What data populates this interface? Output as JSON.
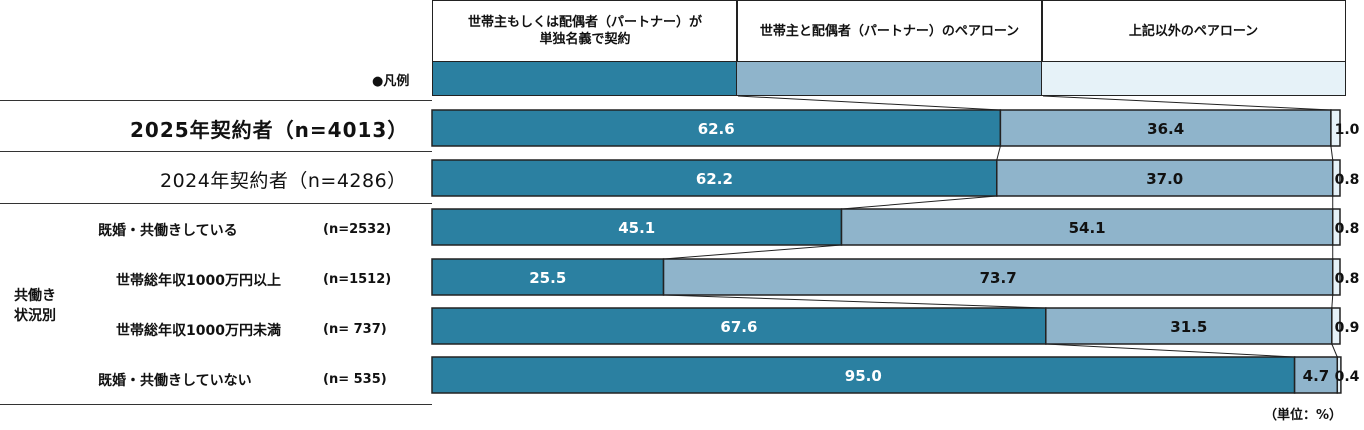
{
  "legend": {
    "title": "●凡例",
    "categories": [
      "世帯主もしくは配偶者（パートナー）が\n単独名義で契約",
      "世帯主と配偶者（パートナー）のペアローン",
      "上記以外のペアローン"
    ]
  },
  "colors": {
    "series1": "#2B80A1",
    "series2": "#8FB4CB",
    "series3": "#E6F2F8"
  },
  "group_label": "共働き\n状況別",
  "unit_label": "（単位：%）",
  "chart_data": {
    "type": "bar",
    "orientation": "horizontal",
    "stacked": true,
    "percent": true,
    "xlim": [
      0,
      100
    ],
    "categories": [
      "2025年契約者（n=4013）",
      "2024年契約者（n=4286）",
      "既婚・共働きしている",
      "世帯総年収1000万円以上",
      "世帯総年収1000万円未満",
      "既婚・共働きしていない"
    ],
    "category_n": [
      "",
      "",
      "(n=2532)",
      "(n=1512)",
      "(n=  737)",
      "(n=  535)"
    ],
    "series": [
      {
        "name": "世帯主もしくは配偶者（パートナー）が単独名義で契約",
        "values": [
          62.6,
          62.2,
          45.1,
          25.5,
          67.6,
          95.0
        ]
      },
      {
        "name": "世帯主と配偶者（パートナー）のペアローン",
        "values": [
          36.4,
          37.0,
          54.1,
          73.7,
          31.5,
          4.7
        ]
      },
      {
        "name": "上記以外のペアローン",
        "values": [
          1.0,
          0.8,
          0.8,
          0.8,
          0.9,
          0.4
        ]
      }
    ],
    "value_labels": [
      [
        "62.6",
        "36.4",
        "1.0"
      ],
      [
        "62.2",
        "37.0",
        "0.8"
      ],
      [
        "45.1",
        "54.1",
        "0.8"
      ],
      [
        "25.5",
        "73.7",
        "0.8"
      ],
      [
        "67.6",
        "31.5",
        "0.9"
      ],
      [
        "95.0",
        "4.7",
        "0.4"
      ]
    ]
  }
}
